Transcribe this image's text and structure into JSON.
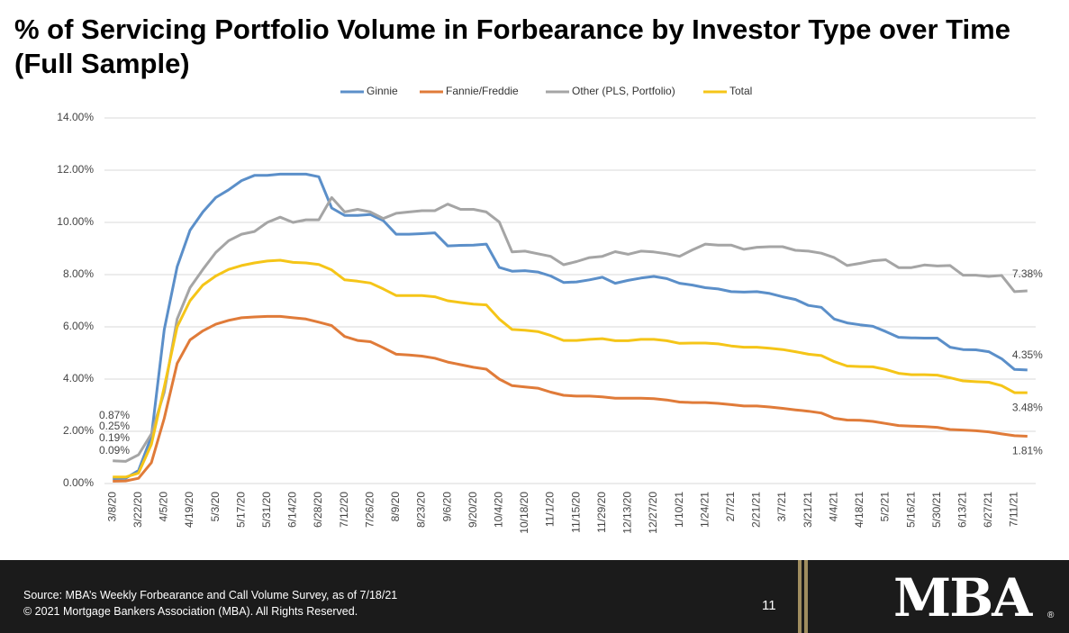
{
  "chart_data": {
    "type": "line",
    "title": "% of Servicing Portfolio Volume in Forbearance by Investor Type over Time (Full Sample)",
    "categories": [
      "3/8/20",
      null,
      "3/22/20",
      null,
      "4/5/20",
      null,
      "4/19/20",
      null,
      "5/3/20",
      null,
      "5/17/20",
      null,
      "5/31/20",
      null,
      "6/14/20",
      null,
      "6/28/20",
      null,
      "7/12/20",
      null,
      "7/26/20",
      null,
      "8/9/20",
      null,
      "8/23/20",
      null,
      "9/6/20",
      null,
      "9/20/20",
      null,
      "10/4/20",
      null,
      "10/18/20",
      null,
      "11/1/20",
      null,
      "11/15/20",
      null,
      "11/29/20",
      null,
      "12/13/20",
      null,
      "12/27/20",
      null,
      "1/10/21",
      null,
      "1/24/21",
      null,
      "2/7/21",
      null,
      "2/21/21",
      null,
      "3/7/21",
      null,
      "3/21/21",
      null,
      "4/4/21",
      null,
      "4/18/21",
      null,
      "5/2/21",
      null,
      "5/16/21",
      null,
      "5/30/21",
      null,
      "6/13/21",
      null,
      "6/27/21",
      null,
      "7/11/21",
      null
    ],
    "series": [
      {
        "name": "Ginnie",
        "color": "#5b8fc9",
        "values": [
          0.19,
          0.2,
          0.5,
          1.8,
          5.9,
          8.3,
          9.7,
          10.4,
          10.95,
          11.25,
          11.6,
          11.8,
          11.8,
          11.85,
          11.85,
          11.85,
          11.75,
          10.55,
          10.27,
          10.27,
          10.3,
          10.07,
          9.55,
          9.55,
          9.57,
          9.6,
          9.1,
          9.12,
          9.13,
          9.17,
          8.28,
          8.13,
          8.15,
          8.1,
          7.95,
          7.7,
          7.72,
          7.8,
          7.9,
          7.67,
          7.78,
          7.87,
          7.93,
          7.85,
          7.67,
          7.6,
          7.5,
          7.45,
          7.35,
          7.33,
          7.35,
          7.28,
          7.15,
          7.05,
          6.82,
          6.75,
          6.3,
          6.15,
          6.08,
          6.02,
          5.82,
          5.6,
          5.58,
          5.57,
          5.57,
          5.22,
          5.13,
          5.12,
          5.05,
          4.78,
          4.37,
          4.35
        ],
        "value_labels": [
          "0.19%",
          null,
          null,
          null,
          null,
          null,
          null,
          null,
          null,
          null,
          null,
          null,
          null,
          null,
          null,
          null,
          null,
          null,
          null,
          null,
          null,
          null,
          null,
          null,
          null,
          null,
          null,
          null,
          null,
          null,
          null,
          null,
          null,
          null,
          null,
          null,
          null,
          null,
          null,
          null,
          null,
          null,
          null,
          null,
          null,
          null,
          null,
          null,
          null,
          null,
          null,
          null,
          null,
          null,
          null,
          null,
          null,
          null,
          null,
          null,
          null,
          null,
          null,
          null,
          null,
          null,
          null,
          null,
          null,
          null,
          null,
          "4.35%"
        ]
      },
      {
        "name": "Fannie/Freddie",
        "color": "#e07b39",
        "values": [
          0.09,
          0.1,
          0.2,
          0.8,
          2.5,
          4.6,
          5.5,
          5.85,
          6.1,
          6.25,
          6.35,
          6.38,
          6.4,
          6.4,
          6.35,
          6.3,
          6.18,
          6.05,
          5.63,
          5.48,
          5.43,
          5.2,
          4.95,
          4.92,
          4.88,
          4.8,
          4.65,
          4.55,
          4.45,
          4.38,
          4.0,
          3.75,
          3.7,
          3.65,
          3.5,
          3.38,
          3.35,
          3.35,
          3.32,
          3.27,
          3.27,
          3.27,
          3.25,
          3.2,
          3.12,
          3.1,
          3.1,
          3.07,
          3.02,
          2.97,
          2.97,
          2.93,
          2.88,
          2.82,
          2.77,
          2.7,
          2.5,
          2.43,
          2.42,
          2.38,
          2.3,
          2.22,
          2.2,
          2.18,
          2.15,
          2.07,
          2.05,
          2.02,
          1.98,
          1.9,
          1.83,
          1.81
        ],
        "value_labels": [
          "0.09%",
          null,
          null,
          null,
          null,
          null,
          null,
          null,
          null,
          null,
          null,
          null,
          null,
          null,
          null,
          null,
          null,
          null,
          null,
          null,
          null,
          null,
          null,
          null,
          null,
          null,
          null,
          null,
          null,
          null,
          null,
          null,
          null,
          null,
          null,
          null,
          null,
          null,
          null,
          null,
          null,
          null,
          null,
          null,
          null,
          null,
          null,
          null,
          null,
          null,
          null,
          null,
          null,
          null,
          null,
          null,
          null,
          null,
          null,
          null,
          null,
          null,
          null,
          null,
          null,
          null,
          null,
          null,
          null,
          null,
          null,
          "1.81%"
        ]
      },
      {
        "name": "Other (PLS, Portfolio)",
        "color": "#a5a5a5",
        "values": [
          0.87,
          0.85,
          1.1,
          1.9,
          3.5,
          6.3,
          7.5,
          8.2,
          8.85,
          9.3,
          9.55,
          9.65,
          10.0,
          10.2,
          10.0,
          10.1,
          10.1,
          10.95,
          10.4,
          10.5,
          10.4,
          10.15,
          10.35,
          10.4,
          10.45,
          10.45,
          10.7,
          10.5,
          10.5,
          10.4,
          10.02,
          8.87,
          8.9,
          8.8,
          8.7,
          8.38,
          8.5,
          8.65,
          8.7,
          8.88,
          8.78,
          8.9,
          8.87,
          8.8,
          8.7,
          8.95,
          9.17,
          9.13,
          9.13,
          8.97,
          9.05,
          9.07,
          9.07,
          8.93,
          8.9,
          8.82,
          8.65,
          8.35,
          8.43,
          8.53,
          8.57,
          8.27,
          8.27,
          8.37,
          8.33,
          8.35,
          7.98,
          7.98,
          7.93,
          7.97,
          7.35,
          7.38
        ],
        "value_labels": [
          "0.87%",
          null,
          null,
          null,
          null,
          null,
          null,
          null,
          null,
          null,
          null,
          null,
          null,
          null,
          null,
          null,
          null,
          null,
          null,
          null,
          null,
          null,
          null,
          null,
          null,
          null,
          null,
          null,
          null,
          null,
          null,
          null,
          null,
          null,
          null,
          null,
          null,
          null,
          null,
          null,
          null,
          null,
          null,
          null,
          null,
          null,
          null,
          null,
          null,
          null,
          null,
          null,
          null,
          null,
          null,
          null,
          null,
          null,
          null,
          null,
          null,
          null,
          null,
          null,
          null,
          null,
          null,
          null,
          null,
          null,
          null,
          "7.38%"
        ]
      },
      {
        "name": "Total",
        "color": "#f5c518",
        "values": [
          0.25,
          0.25,
          0.4,
          1.5,
          3.7,
          6.0,
          7.0,
          7.6,
          7.95,
          8.2,
          8.35,
          8.45,
          8.52,
          8.55,
          8.47,
          8.45,
          8.39,
          8.18,
          7.8,
          7.75,
          7.68,
          7.45,
          7.2,
          7.2,
          7.2,
          7.15,
          7.0,
          6.93,
          6.87,
          6.84,
          6.3,
          5.9,
          5.87,
          5.82,
          5.67,
          5.48,
          5.48,
          5.52,
          5.55,
          5.47,
          5.47,
          5.52,
          5.52,
          5.47,
          5.37,
          5.38,
          5.38,
          5.35,
          5.27,
          5.22,
          5.22,
          5.18,
          5.13,
          5.05,
          4.95,
          4.9,
          4.67,
          4.5,
          4.48,
          4.47,
          4.37,
          4.22,
          4.17,
          4.17,
          4.15,
          4.05,
          3.93,
          3.9,
          3.88,
          3.75,
          3.48,
          3.48
        ],
        "value_labels": [
          "0.25%",
          null,
          null,
          null,
          null,
          null,
          null,
          null,
          null,
          null,
          null,
          null,
          null,
          null,
          null,
          null,
          null,
          null,
          null,
          null,
          null,
          null,
          null,
          null,
          null,
          null,
          null,
          null,
          null,
          null,
          null,
          null,
          null,
          null,
          null,
          null,
          null,
          null,
          null,
          null,
          null,
          null,
          null,
          null,
          null,
          null,
          null,
          null,
          null,
          null,
          null,
          null,
          null,
          null,
          null,
          null,
          null,
          null,
          null,
          null,
          null,
          null,
          null,
          null,
          null,
          null,
          null,
          null,
          null,
          null,
          null,
          "3.48%"
        ]
      }
    ],
    "ylim": [
      0,
      14
    ],
    "yticks": [
      {
        "value": 0,
        "label": "0.00%"
      },
      {
        "value": 2,
        "label": "2.00%"
      },
      {
        "value": 4,
        "label": "4.00%"
      },
      {
        "value": 6,
        "label": "6.00%"
      },
      {
        "value": 8,
        "label": "8.00%"
      },
      {
        "value": 10,
        "label": "10.00%"
      },
      {
        "value": 12,
        "label": "12.00%"
      },
      {
        "value": 14,
        "label": "14.00%"
      }
    ],
    "grid": true,
    "legend": "top"
  },
  "footer": {
    "source": "Source: MBA’s Weekly Forbearance and Call Volume Survey, as of 7/18/21",
    "copyright": "© 2021 Mortgage Bankers Association (MBA). All Rights Reserved.",
    "page_number": "11",
    "logo": "MBA",
    "registered": "®"
  }
}
